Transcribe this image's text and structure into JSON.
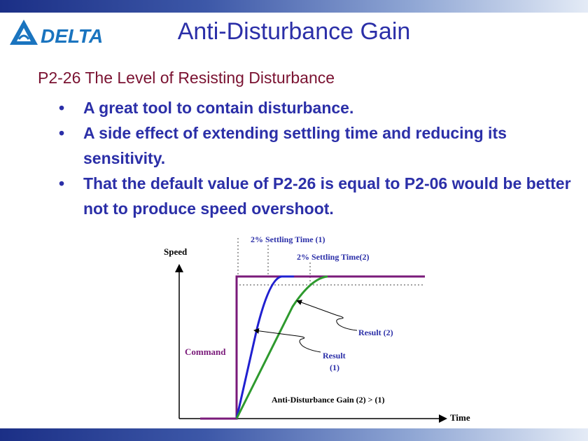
{
  "header": {
    "title": "Anti-Disturbance Gain",
    "logo_text": "DELTA"
  },
  "content": {
    "heading": "P2-26 The Level of Resisting Disturbance",
    "bullets": [
      "A great tool to contain disturbance.",
      "A side effect of extending settling time and reducing its sensitivity.",
      "That the default value of P2-26 is equal to P2-06 would be better not to produce speed overshoot."
    ]
  },
  "colors": {
    "title": "#2b2fa8",
    "heading": "#7a1231",
    "command": "#7a1a7a",
    "result1": "#2020d0",
    "result2": "#2e9a2e"
  },
  "chart_data": {
    "type": "line",
    "title": "",
    "xlabel": "Time",
    "ylabel": "Speed",
    "series": [
      {
        "name": "Command"
      },
      {
        "name": "Result (1)"
      },
      {
        "name": "Result (2)"
      }
    ],
    "annotations": {
      "settling1": "2% Settling Time (1)",
      "settling2": "2% Settling Time(2)",
      "command": "Command",
      "result2": "Result (2)",
      "result1_line1": "Result",
      "result1_line2": "(1)",
      "gain_note": "Anti-Disturbance Gain (2) > (1)"
    }
  }
}
